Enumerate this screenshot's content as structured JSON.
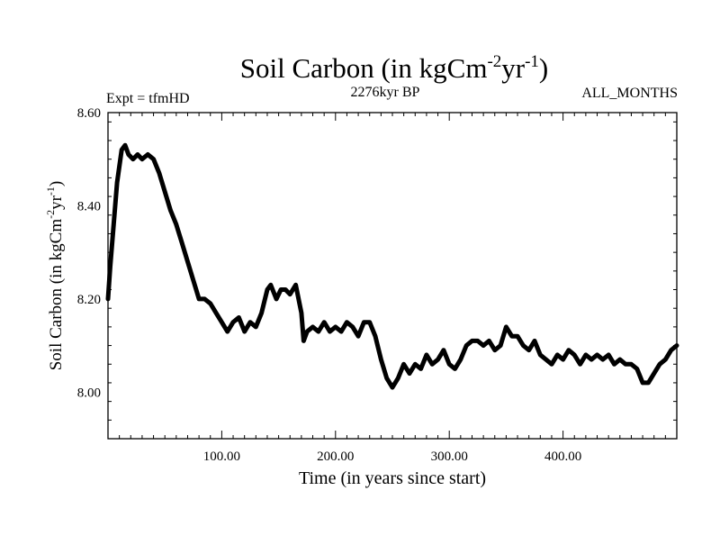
{
  "chart_data": {
    "type": "line",
    "title_main": "Soil Carbon (in kgCm",
    "title_sup1": "-2",
    "title_mid": "yr",
    "title_sup2": "-1",
    "title_end": ")",
    "left_caption": "Expt = tfmHD",
    "center_caption": "2276kyr BP",
    "right_caption": "ALL_MONTHS",
    "xlabel": "Time (in years since start)",
    "ylabel_main": "Soil Carbon (in kgCm",
    "ylabel_sup1": "-2",
    "ylabel_mid": "yr",
    "ylabel_sup2": "-1",
    "ylabel_end": ")",
    "xlim": [
      0,
      500
    ],
    "ylim": [
      7.9,
      8.6
    ],
    "xticks": [
      100,
      200,
      300,
      400
    ],
    "xtick_labels": [
      "100.00",
      "200.00",
      "300.00",
      "400.00"
    ],
    "yticks": [
      8.0,
      8.2,
      8.4,
      8.6
    ],
    "ytick_labels": [
      "8.00",
      "8.20",
      "8.40",
      "8.60"
    ],
    "line_color": "#000000",
    "series": [
      {
        "name": "Soil Carbon",
        "x": [
          0,
          2,
          5,
          8,
          12,
          15,
          18,
          22,
          26,
          30,
          35,
          40,
          45,
          50,
          55,
          60,
          65,
          70,
          75,
          80,
          85,
          90,
          95,
          100,
          105,
          110,
          115,
          120,
          125,
          130,
          135,
          140,
          143,
          148,
          152,
          156,
          160,
          165,
          170,
          172,
          175,
          180,
          185,
          190,
          195,
          200,
          205,
          210,
          215,
          220,
          225,
          230,
          235,
          240,
          245,
          250,
          255,
          260,
          265,
          270,
          275,
          280,
          285,
          290,
          295,
          300,
          305,
          310,
          315,
          320,
          325,
          330,
          335,
          340,
          345,
          350,
          355,
          360,
          365,
          370,
          375,
          380,
          385,
          390,
          395,
          400,
          405,
          410,
          415,
          420,
          425,
          430,
          435,
          440,
          445,
          450,
          455,
          460,
          465,
          470,
          475,
          480,
          485,
          490,
          495,
          500
        ],
        "values": [
          8.2,
          8.27,
          8.36,
          8.45,
          8.52,
          8.53,
          8.51,
          8.5,
          8.51,
          8.5,
          8.51,
          8.5,
          8.47,
          8.43,
          8.39,
          8.36,
          8.32,
          8.28,
          8.24,
          8.2,
          8.2,
          8.19,
          8.17,
          8.15,
          8.13,
          8.15,
          8.16,
          8.13,
          8.15,
          8.14,
          8.17,
          8.22,
          8.23,
          8.2,
          8.22,
          8.22,
          8.21,
          8.23,
          8.17,
          8.11,
          8.13,
          8.14,
          8.13,
          8.15,
          8.13,
          8.14,
          8.13,
          8.15,
          8.14,
          8.12,
          8.15,
          8.15,
          8.12,
          8.07,
          8.03,
          8.01,
          8.03,
          8.06,
          8.04,
          8.06,
          8.05,
          8.08,
          8.06,
          8.07,
          8.09,
          8.06,
          8.05,
          8.07,
          8.1,
          8.11,
          8.11,
          8.1,
          8.11,
          8.09,
          8.1,
          8.14,
          8.12,
          8.12,
          8.1,
          8.09,
          8.11,
          8.08,
          8.07,
          8.06,
          8.08,
          8.07,
          8.09,
          8.08,
          8.06,
          8.08,
          8.07,
          8.08,
          8.07,
          8.08,
          8.06,
          8.07,
          8.06,
          8.06,
          8.05,
          8.02,
          8.02,
          8.04,
          8.06,
          8.07,
          8.09,
          8.1
        ]
      }
    ]
  }
}
